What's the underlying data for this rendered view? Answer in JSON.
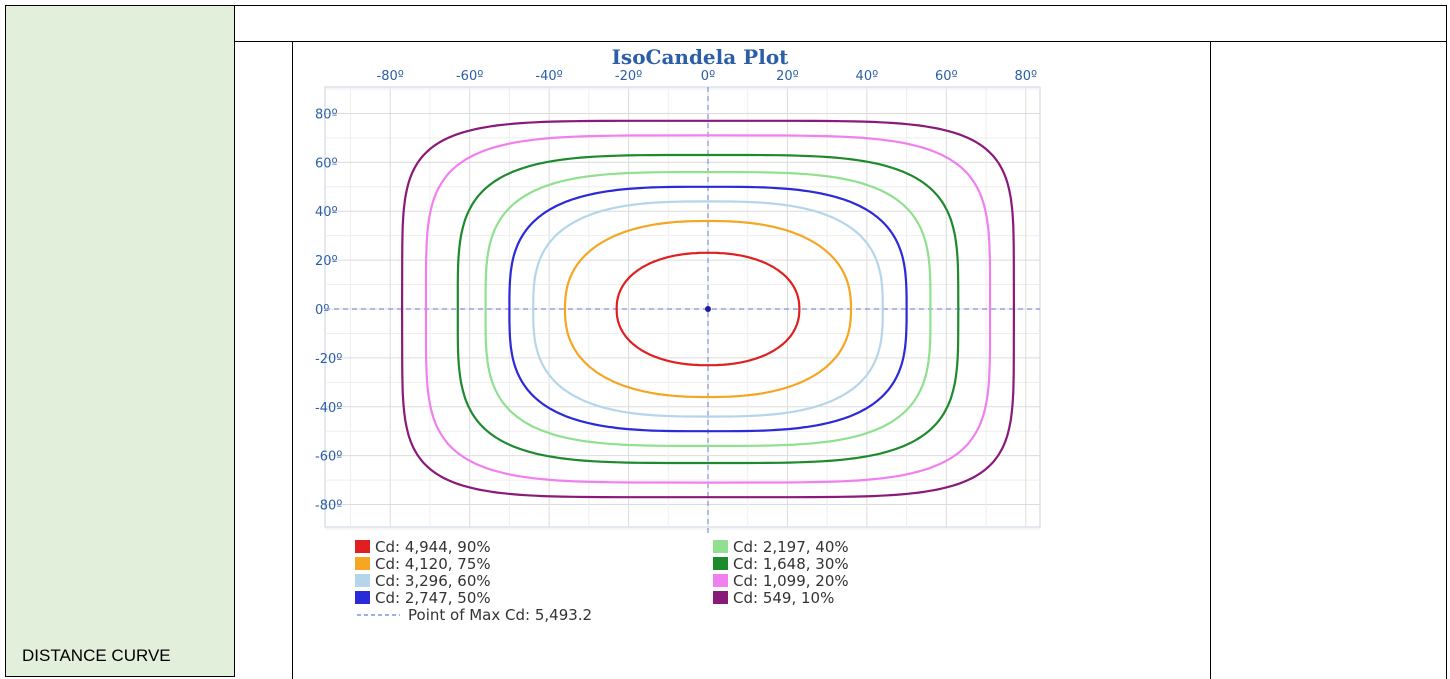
{
  "row_label": "DISTANCE CURVE",
  "chart_data": {
    "type": "isocandela",
    "title": "IsoCandela Plot",
    "x_ticks": [
      "-80º",
      "-60º",
      "-40º",
      "-20º",
      "0º",
      "20º",
      "40º",
      "60º",
      "80º"
    ],
    "y_ticks": [
      "80º",
      "60º",
      "40º",
      "20º",
      "0º",
      "-20º",
      "-40º",
      "-60º",
      "-80º"
    ],
    "xlim": [
      -90,
      90
    ],
    "ylim": [
      -90,
      90
    ],
    "grid": true,
    "series": [
      {
        "name": "Cd: 4,944, 90%",
        "color": "#e02020",
        "radius": 23,
        "n": 2.2
      },
      {
        "name": "Cd: 4,120, 75%",
        "color": "#f5a623",
        "radius": 36,
        "n": 2.4
      },
      {
        "name": "Cd: 3,296, 60%",
        "color": "#b5d5ea",
        "radius": 44,
        "n": 2.9
      },
      {
        "name": "Cd: 2,747, 50%",
        "color": "#2a2ad8",
        "radius": 50,
        "n": 3.2
      },
      {
        "name": "Cd: 2,197, 40%",
        "color": "#90e090",
        "radius": 56,
        "n": 3.6
      },
      {
        "name": "Cd: 1,648, 30%",
        "color": "#1e8a2e",
        "radius": 63,
        "n": 4.0
      },
      {
        "name": "Cd: 1,099, 20%",
        "color": "#f080f0",
        "radius": 71,
        "n": 4.6
      },
      {
        "name": "Cd: 549, 10%",
        "color": "#8a1a7a",
        "radius": 77,
        "n": 5.5
      }
    ],
    "max_point": {
      "label": "Point of Max Cd: 5,493.2",
      "x": 0,
      "y": 0
    },
    "legend_placement": "bottom"
  }
}
